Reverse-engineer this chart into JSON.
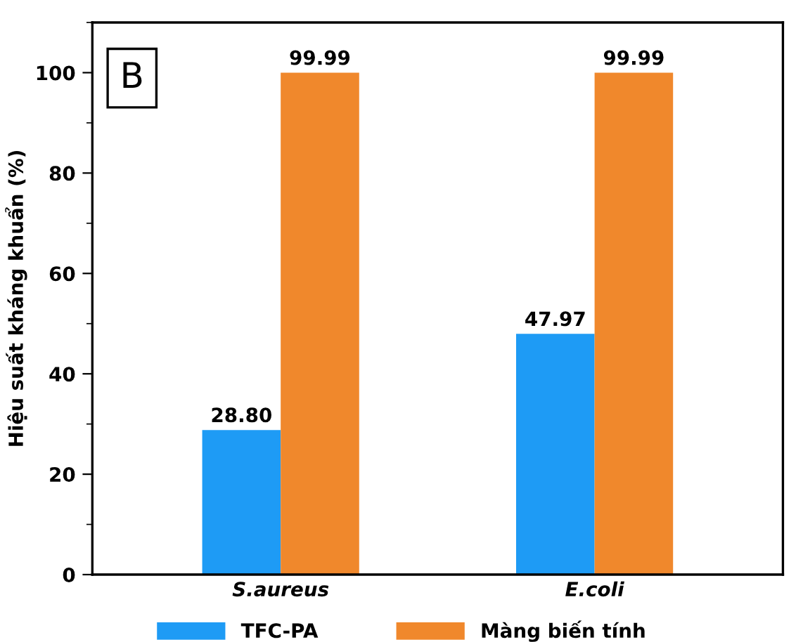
{
  "chart_data": {
    "type": "bar",
    "ylabel": "Hiệu suất kháng khuẩn (%)",
    "categories": [
      "S.aureus",
      "E.coli"
    ],
    "series": [
      {
        "name": "TFC-PA",
        "color": "#1e9bf5",
        "values": [
          28.8,
          47.97
        ],
        "value_labels": [
          "28.80",
          "47.97"
        ]
      },
      {
        "name": "Màng biến tính",
        "color": "#f0882c",
        "values": [
          99.99,
          99.99
        ],
        "value_labels": [
          "99.99",
          "99.99"
        ]
      }
    ],
    "ylim": [
      0,
      110
    ],
    "yticks": [
      0,
      20,
      40,
      60,
      80,
      100
    ],
    "grid": false,
    "legend": "bottom",
    "annotations": [
      "B"
    ]
  }
}
